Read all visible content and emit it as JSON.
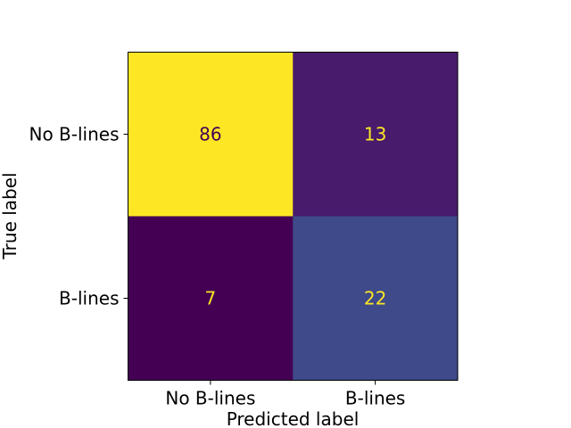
{
  "chart_data": {
    "type": "heatmap",
    "title": "",
    "xlabel": "Predicted label",
    "ylabel": "True label",
    "x_categories": [
      "No B-lines",
      "B-lines"
    ],
    "y_categories": [
      "No B-lines",
      "B-lines"
    ],
    "values": [
      [
        86,
        13
      ],
      [
        7,
        22
      ]
    ],
    "colormap": "viridis",
    "color_range": [
      7,
      86
    ],
    "colorbar": false,
    "grid": false,
    "cell_colors": [
      [
        "#fde725",
        "#481b6d"
      ],
      [
        "#440154",
        "#3e4a89"
      ]
    ],
    "label_colors": [
      [
        "#440154",
        "#fde725"
      ],
      [
        "#fde725",
        "#fde725"
      ]
    ]
  }
}
